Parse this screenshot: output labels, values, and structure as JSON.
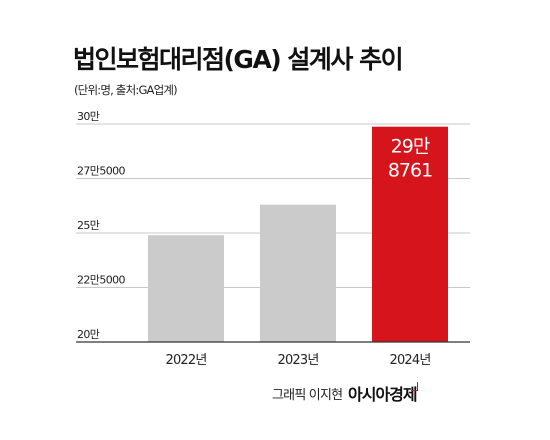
{
  "chart_data": {
    "type": "bar",
    "title": "법인보험대리점(GA) 설계사 추이",
    "subtitle": "(단위:명, 출처:GA업계)",
    "categories": [
      "2022년",
      "2023년",
      "2024년"
    ],
    "values": [
      249000,
      263000,
      298761
    ],
    "ylim": [
      200000,
      300000
    ],
    "yticks": [
      {
        "value": 300000,
        "label": "30만"
      },
      {
        "value": 275000,
        "label": "27만5000"
      },
      {
        "value": 250000,
        "label": "25만"
      },
      {
        "value": 225000,
        "label": "22만5000"
      },
      {
        "value": 200000,
        "label": "20만"
      }
    ],
    "grid": true,
    "data_labels": [
      {
        "category": "2024년",
        "lines": [
          "29만",
          "8761"
        ]
      }
    ],
    "colors": {
      "default": "#cbcbcb",
      "highlight": "#d6141c",
      "grid": "#c8c8c8",
      "baseline": "#333333"
    },
    "highlight_index": 2
  },
  "credit": {
    "author": "그래픽 이지현",
    "brand": "아시아경제"
  }
}
